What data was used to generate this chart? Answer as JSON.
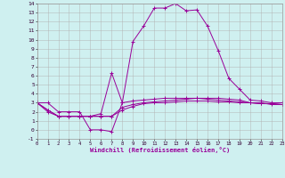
{
  "title": "",
  "xlabel": "Windchill (Refroidissement éolien,°C)",
  "bg_color": "#cff0f0",
  "line_color": "#990099",
  "grid_color": "#b0b0b0",
  "xlim": [
    0,
    23
  ],
  "ylim": [
    -1,
    14
  ],
  "xticks": [
    0,
    1,
    2,
    3,
    4,
    5,
    6,
    7,
    8,
    9,
    10,
    11,
    12,
    13,
    14,
    15,
    16,
    17,
    18,
    19,
    20,
    21,
    22,
    23
  ],
  "yticks": [
    -1,
    0,
    1,
    2,
    3,
    4,
    5,
    6,
    7,
    8,
    9,
    10,
    11,
    12,
    13,
    14
  ],
  "lines": [
    [
      3.0,
      3.0,
      2.0,
      2.0,
      2.0,
      0.0,
      0.0,
      -0.2,
      3.0,
      9.8,
      11.5,
      13.5,
      13.5,
      14.0,
      13.2,
      13.3,
      11.5,
      8.8,
      5.7,
      4.5,
      3.3,
      3.2,
      3.0,
      3.0
    ],
    [
      3.0,
      2.0,
      1.5,
      1.5,
      1.5,
      1.5,
      1.8,
      6.3,
      3.0,
      3.2,
      3.3,
      3.4,
      3.5,
      3.5,
      3.5,
      3.5,
      3.5,
      3.5,
      3.4,
      3.3,
      3.0,
      3.0,
      2.8,
      2.8
    ],
    [
      3.0,
      2.2,
      1.5,
      1.5,
      1.5,
      1.5,
      1.5,
      1.5,
      2.5,
      2.8,
      3.0,
      3.1,
      3.2,
      3.3,
      3.4,
      3.5,
      3.4,
      3.3,
      3.2,
      3.1,
      3.0,
      2.9,
      2.9,
      2.8
    ],
    [
      3.0,
      2.2,
      1.5,
      1.5,
      1.5,
      1.5,
      1.5,
      1.5,
      2.2,
      2.6,
      2.9,
      3.0,
      3.0,
      3.1,
      3.2,
      3.2,
      3.2,
      3.1,
      3.1,
      3.0,
      3.0,
      2.9,
      2.9,
      2.8
    ]
  ]
}
